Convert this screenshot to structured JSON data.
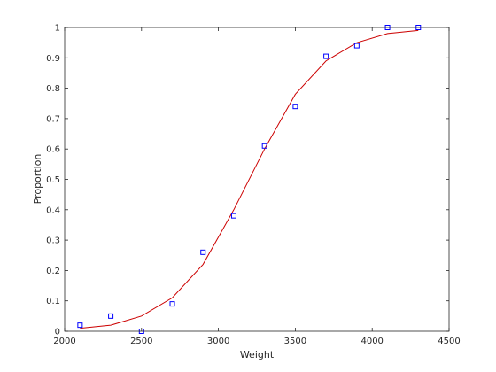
{
  "chart_data": {
    "type": "scatter",
    "title": "",
    "xlabel": "Weight",
    "ylabel": "Proportion",
    "xlim": [
      2000,
      4500
    ],
    "ylim": [
      0,
      1
    ],
    "xticks": [
      2000,
      2500,
      3000,
      3500,
      4000,
      4500
    ],
    "yticks": [
      0,
      0.1,
      0.2,
      0.3,
      0.4,
      0.5,
      0.6,
      0.7,
      0.8,
      0.9,
      1
    ],
    "xtick_labels": [
      "2000",
      "2500",
      "3000",
      "3500",
      "4000",
      "4500"
    ],
    "ytick_labels": [
      "0",
      "0.1",
      "0.2",
      "0.3",
      "0.4",
      "0.5",
      "0.6",
      "0.7",
      "0.8",
      "0.9",
      "1"
    ],
    "grid": false,
    "legend": "none",
    "series": [
      {
        "type": "scatter",
        "marker": "square",
        "color": "#0000ff",
        "x": [
          2100,
          2300,
          2500,
          2700,
          2900,
          3100,
          3300,
          3500,
          3700,
          3900,
          4100,
          4300
        ],
        "y": [
          0.02,
          0.05,
          0.0,
          0.09,
          0.26,
          0.38,
          0.61,
          0.74,
          0.905,
          0.94,
          1.0,
          1.0
        ]
      },
      {
        "type": "line",
        "color": "#cc0000",
        "x": [
          2100,
          2300,
          2500,
          2700,
          2900,
          3100,
          3300,
          3500,
          3700,
          3900,
          4100,
          4300
        ],
        "y": [
          0.01,
          0.02,
          0.05,
          0.11,
          0.22,
          0.4,
          0.6,
          0.78,
          0.89,
          0.95,
          0.98,
          0.99
        ]
      }
    ]
  }
}
